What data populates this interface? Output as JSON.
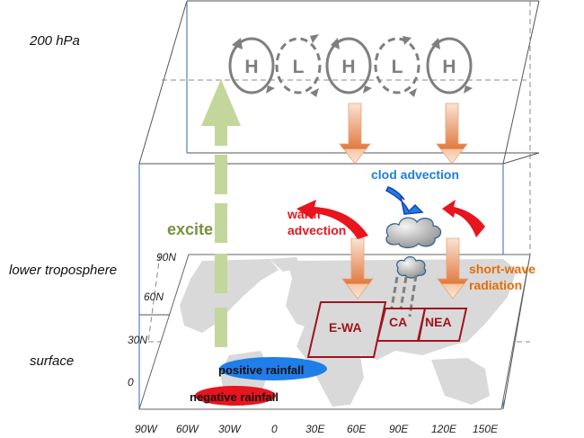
{
  "levels": {
    "upper": "200 hPa",
    "middle": "lower troposphere",
    "bottom": "surface"
  },
  "latitude_ticks": [
    "90N",
    "60N",
    "30N",
    "0"
  ],
  "longitude_ticks": [
    "90W",
    "60W",
    "30W",
    "0",
    "30E",
    "60E",
    "90E",
    "120E",
    "150E"
  ],
  "wave_train": [
    {
      "label": "H",
      "style": "solid"
    },
    {
      "label": "L",
      "style": "dashed"
    },
    {
      "label": "H",
      "style": "solid"
    },
    {
      "label": "L",
      "style": "dashed"
    },
    {
      "label": "H",
      "style": "solid"
    }
  ],
  "annotations": {
    "excite": "excite",
    "cold_advection": "clod advection",
    "warm_advection_1": "warm",
    "warm_advection_2": "advection",
    "shortwave_1": "short-wave",
    "shortwave_2": "radiation",
    "positive_rainfall": "positive rainfall",
    "negative_rainfall": "negative rainfall"
  },
  "regions": [
    "E-WA",
    "CA",
    "NEA"
  ],
  "colors": {
    "excite_green": "#76923c",
    "arrow_green": "#c3d69b",
    "warm_red": "#e8141e",
    "cold_blue": "#1e7fe0",
    "shortwave_orange": "#e46c0a",
    "region_red": "#a0141e",
    "land_gray": "#d9d9d9",
    "positive_blue": "#1f7ee8",
    "negative_red": "#e8141e"
  }
}
